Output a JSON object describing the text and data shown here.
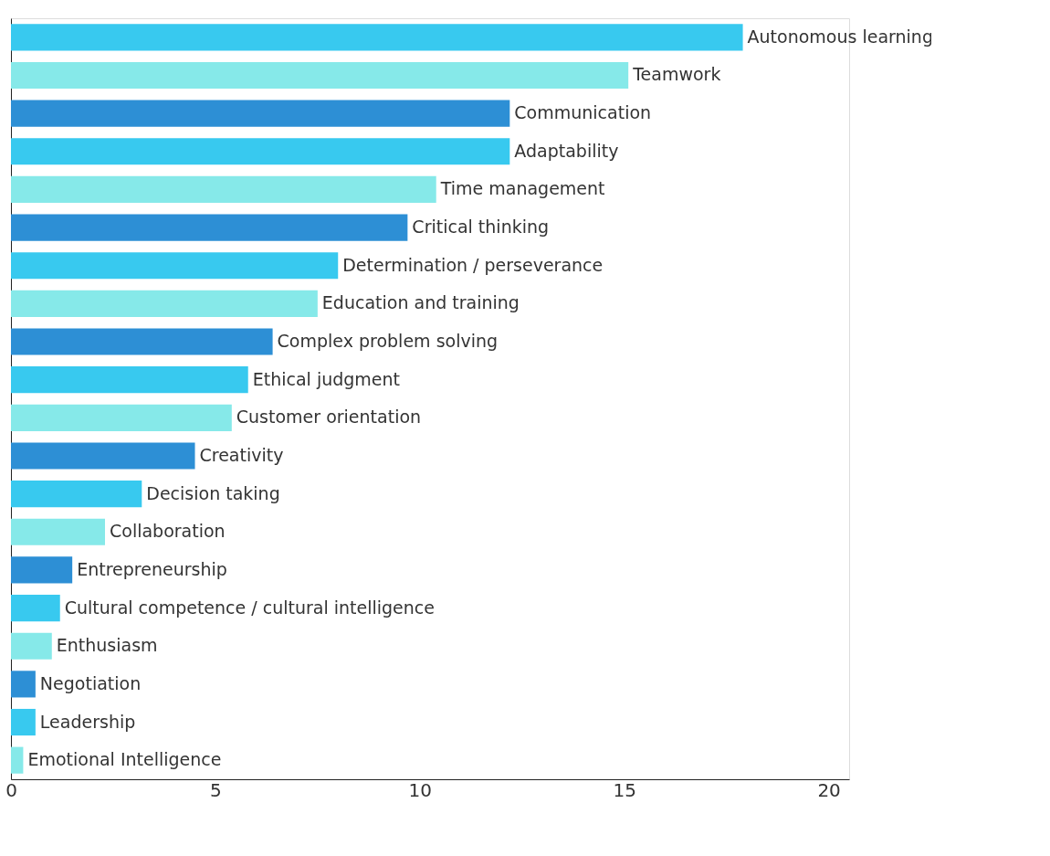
{
  "chart_data": {
    "type": "bar",
    "orientation": "horizontal",
    "categories": [
      "Autonomous learning",
      "Teamwork",
      "Communication",
      "Adaptability",
      "Time management",
      "Critical thinking",
      "Determination / perseverance",
      "Education and training",
      "Complex problem solving",
      "Ethical judgment",
      "Customer orientation",
      "Creativity",
      "Decision taking",
      "Collaboration",
      "Entrepreneurship",
      "Cultural competence / cultural intelligence",
      "Enthusiasm",
      "Negotiation",
      "Leadership",
      "Emotional Intelligence"
    ],
    "values": [
      17.9,
      15.1,
      12.2,
      12.2,
      10.4,
      9.7,
      8.0,
      7.5,
      6.4,
      5.8,
      5.4,
      4.5,
      3.2,
      2.3,
      1.5,
      1.2,
      1.0,
      0.6,
      0.6,
      0.3
    ],
    "colors": [
      "#38c9ef",
      "#86e9e9",
      "#2d8fd5",
      "#38c9ef",
      "#86e9e9",
      "#2d8fd5",
      "#38c9ef",
      "#86e9e9",
      "#2d8fd5",
      "#38c9ef",
      "#86e9e9",
      "#2d8fd5",
      "#38c9ef",
      "#86e9e9",
      "#2d8fd5",
      "#38c9ef",
      "#86e9e9",
      "#2d8fd5",
      "#38c9ef",
      "#86e9e9"
    ],
    "xlim": [
      0,
      20.5
    ],
    "xticks": [
      0,
      5,
      10,
      15,
      20
    ],
    "grid": false,
    "tick_labels": "x"
  }
}
